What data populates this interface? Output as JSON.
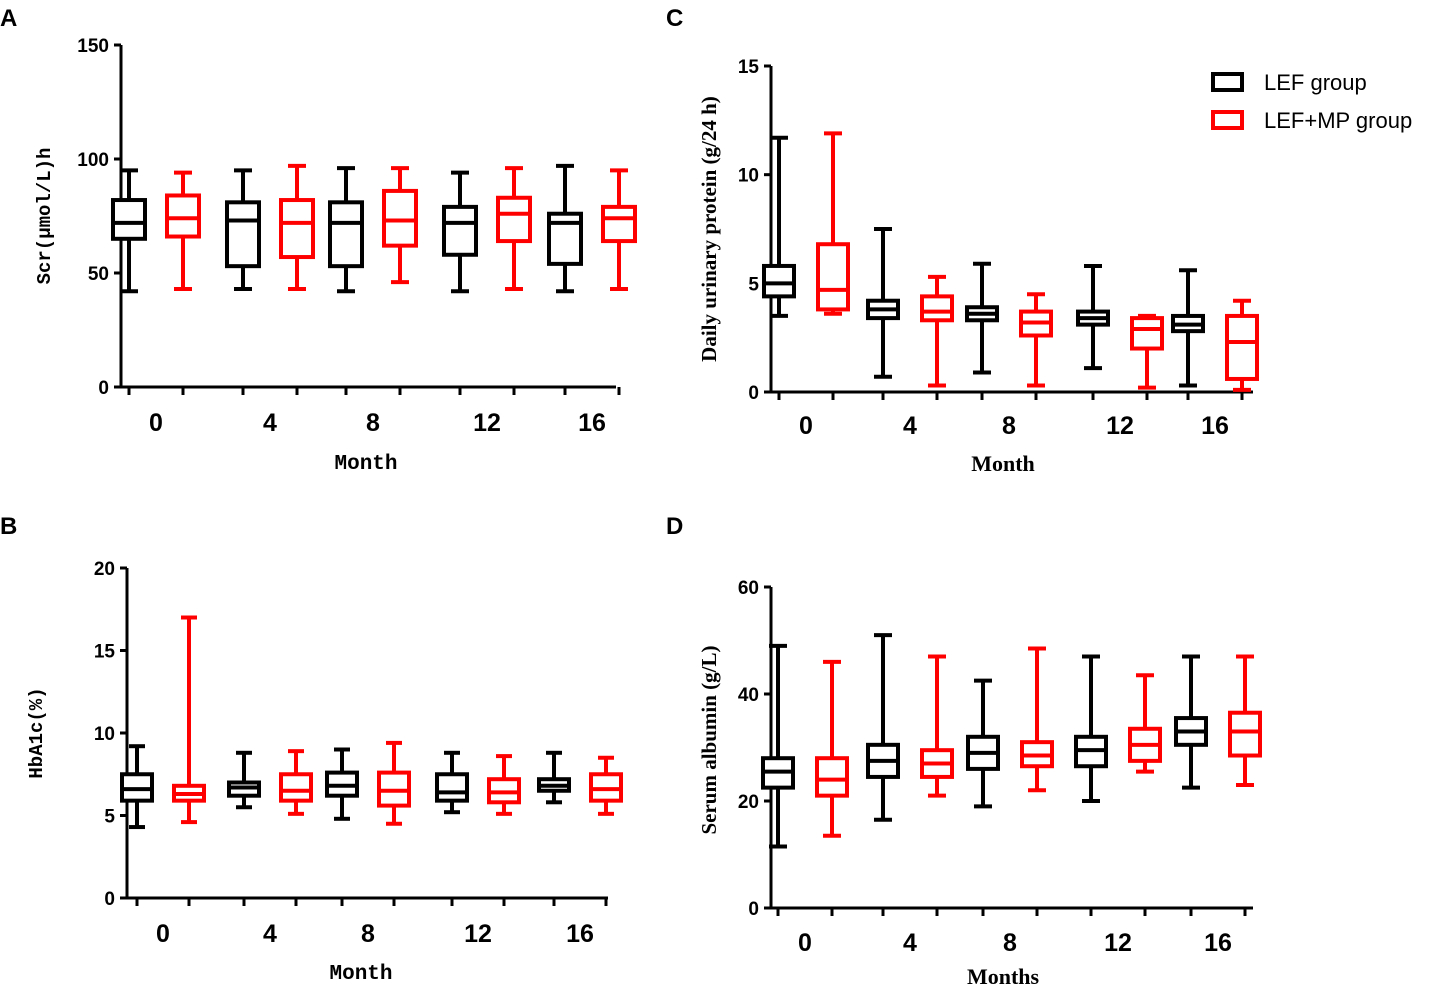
{
  "legend": {
    "items": [
      {
        "label": "LEF group",
        "color": "#000000"
      },
      {
        "label": "LEF+MP group",
        "color": "#ff0000"
      }
    ]
  },
  "chart_data": [
    {
      "panel": "A",
      "type": "box",
      "title": "",
      "xlabel": "Month",
      "ylabel": "Scr(μmol/L)h",
      "ylim": [
        0,
        150
      ],
      "yticks": [
        0,
        50,
        100,
        150
      ],
      "categories": [
        "0",
        "4",
        "8",
        "12",
        "16"
      ],
      "series": [
        {
          "name": "LEF group",
          "color": "#000000",
          "boxes": [
            {
              "min": 42,
              "q1": 65,
              "median": 72,
              "q3": 82,
              "max": 95
            },
            {
              "min": 43,
              "q1": 53,
              "median": 73,
              "q3": 81,
              "max": 95
            },
            {
              "min": 42,
              "q1": 53,
              "median": 72,
              "q3": 81,
              "max": 96
            },
            {
              "min": 42,
              "q1": 58,
              "median": 72,
              "q3": 79,
              "max": 94
            },
            {
              "min": 42,
              "q1": 54,
              "median": 72,
              "q3": 76,
              "max": 97
            }
          ]
        },
        {
          "name": "LEF+MP group",
          "color": "#ff0000",
          "boxes": [
            {
              "min": 43,
              "q1": 66,
              "median": 74,
              "q3": 84,
              "max": 94
            },
            {
              "min": 43,
              "q1": 57,
              "median": 72,
              "q3": 82,
              "max": 97
            },
            {
              "min": 46,
              "q1": 62,
              "median": 73,
              "q3": 86,
              "max": 96
            },
            {
              "min": 43,
              "q1": 64,
              "median": 76,
              "q3": 83,
              "max": 96
            },
            {
              "min": 43,
              "q1": 64,
              "median": 74,
              "q3": 79,
              "max": 95
            }
          ]
        }
      ]
    },
    {
      "panel": "B",
      "type": "box",
      "title": "",
      "xlabel": "Month",
      "ylabel": "HbA1c(%)",
      "ylim": [
        0,
        20
      ],
      "yticks": [
        0,
        5,
        10,
        15,
        20
      ],
      "categories": [
        "0",
        "4",
        "8",
        "12",
        "16"
      ],
      "series": [
        {
          "name": "LEF group",
          "color": "#000000",
          "boxes": [
            {
              "min": 4.3,
              "q1": 5.9,
              "median": 6.6,
              "q3": 7.5,
              "max": 9.2
            },
            {
              "min": 5.5,
              "q1": 6.2,
              "median": 6.7,
              "q3": 7.0,
              "max": 8.8
            },
            {
              "min": 4.8,
              "q1": 6.2,
              "median": 6.8,
              "q3": 7.6,
              "max": 9.0
            },
            {
              "min": 5.2,
              "q1": 5.9,
              "median": 6.4,
              "q3": 7.5,
              "max": 8.8
            },
            {
              "min": 5.8,
              "q1": 6.5,
              "median": 6.8,
              "q3": 7.2,
              "max": 8.8
            }
          ]
        },
        {
          "name": "LEF+MP group",
          "color": "#ff0000",
          "boxes": [
            {
              "min": 4.6,
              "q1": 5.9,
              "median": 6.3,
              "q3": 6.8,
              "max": 17.0
            },
            {
              "min": 5.1,
              "q1": 5.9,
              "median": 6.5,
              "q3": 7.5,
              "max": 8.9
            },
            {
              "min": 4.5,
              "q1": 5.6,
              "median": 6.5,
              "q3": 7.6,
              "max": 9.4
            },
            {
              "min": 5.1,
              "q1": 5.8,
              "median": 6.4,
              "q3": 7.2,
              "max": 8.6
            },
            {
              "min": 5.1,
              "q1": 5.9,
              "median": 6.6,
              "q3": 7.5,
              "max": 8.5
            }
          ]
        }
      ]
    },
    {
      "panel": "C",
      "type": "box",
      "title": "",
      "xlabel": "Month",
      "ylabel": "Daily urinary protein (g/24 h)",
      "ylim": [
        0,
        15
      ],
      "yticks": [
        0,
        5,
        10,
        15
      ],
      "categories": [
        "0",
        "4",
        "8",
        "12",
        "16"
      ],
      "series": [
        {
          "name": "LEF group",
          "color": "#000000",
          "boxes": [
            {
              "min": 3.5,
              "q1": 4.4,
              "median": 5.0,
              "q3": 5.8,
              "max": 11.7
            },
            {
              "min": 0.7,
              "q1": 3.4,
              "median": 3.8,
              "q3": 4.2,
              "max": 7.5
            },
            {
              "min": 0.9,
              "q1": 3.3,
              "median": 3.6,
              "q3": 3.9,
              "max": 5.9
            },
            {
              "min": 1.1,
              "q1": 3.1,
              "median": 3.4,
              "q3": 3.7,
              "max": 5.8
            },
            {
              "min": 0.3,
              "q1": 2.8,
              "median": 3.1,
              "q3": 3.5,
              "max": 5.6
            }
          ]
        },
        {
          "name": "LEF+MP group",
          "color": "#ff0000",
          "boxes": [
            {
              "min": 3.6,
              "q1": 3.8,
              "median": 4.7,
              "q3": 6.8,
              "max": 11.9
            },
            {
              "min": 0.3,
              "q1": 3.3,
              "median": 3.7,
              "q3": 4.4,
              "max": 5.3
            },
            {
              "min": 0.3,
              "q1": 2.6,
              "median": 3.2,
              "q3": 3.7,
              "max": 4.5
            },
            {
              "min": 0.2,
              "q1": 2.0,
              "median": 2.9,
              "q3": 3.4,
              "max": 3.5
            },
            {
              "min": 0.1,
              "q1": 0.6,
              "median": 2.3,
              "q3": 3.5,
              "max": 4.2
            }
          ]
        }
      ]
    },
    {
      "panel": "D",
      "type": "box",
      "title": "",
      "xlabel": "Months",
      "ylabel": "Serum albumin (g/L)",
      "ylim": [
        0,
        60
      ],
      "yticks": [
        0,
        20,
        40,
        60
      ],
      "categories": [
        "0",
        "4",
        "8",
        "12",
        "16"
      ],
      "series": [
        {
          "name": "LEF group",
          "color": "#000000",
          "boxes": [
            {
              "min": 11.5,
              "q1": 22.5,
              "median": 25.5,
              "q3": 28.0,
              "max": 49.0
            },
            {
              "min": 16.5,
              "q1": 24.5,
              "median": 27.5,
              "q3": 30.5,
              "max": 51.0
            },
            {
              "min": 19.0,
              "q1": 26.0,
              "median": 29.0,
              "q3": 32.0,
              "max": 42.5
            },
            {
              "min": 20.0,
              "q1": 26.5,
              "median": 29.5,
              "q3": 32.0,
              "max": 47.0
            },
            {
              "min": 22.5,
              "q1": 30.5,
              "median": 33.0,
              "q3": 35.5,
              "max": 47.0
            }
          ]
        },
        {
          "name": "LEF+MP group",
          "color": "#ff0000",
          "boxes": [
            {
              "min": 13.5,
              "q1": 21.0,
              "median": 24.0,
              "q3": 28.0,
              "max": 46.0
            },
            {
              "min": 21.0,
              "q1": 24.5,
              "median": 27.0,
              "q3": 29.5,
              "max": 47.0
            },
            {
              "min": 22.0,
              "q1": 26.5,
              "median": 28.5,
              "q3": 31.0,
              "max": 48.5
            },
            {
              "min": 25.5,
              "q1": 27.5,
              "median": 30.5,
              "q3": 33.5,
              "max": 43.5
            },
            {
              "min": 23.0,
              "q1": 28.5,
              "median": 33.0,
              "q3": 36.5,
              "max": 47.0
            }
          ]
        }
      ]
    }
  ]
}
